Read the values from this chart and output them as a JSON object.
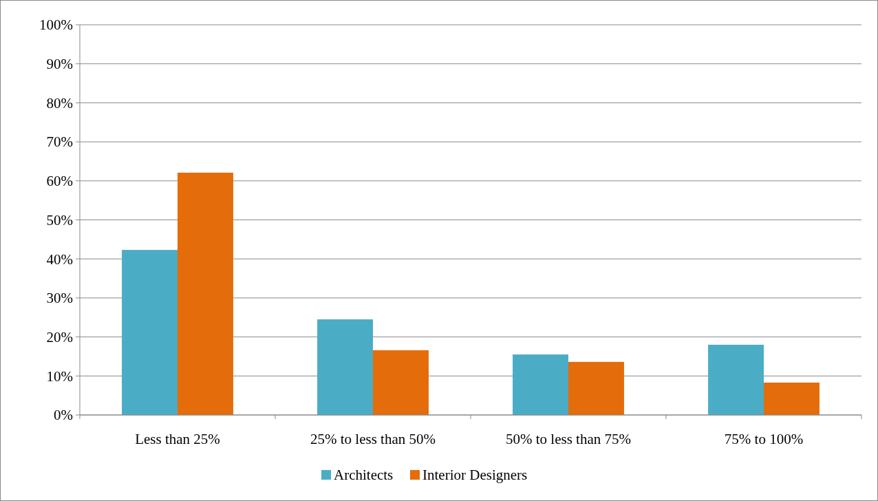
{
  "chart_data": {
    "type": "bar",
    "categories": [
      "Less than 25%",
      "25% to less than 50%",
      "50% to less than 75%",
      "75% to 100%"
    ],
    "series": [
      {
        "name": "Architects",
        "color": "#4bacc6",
        "values": [
          42.3,
          24.5,
          15.5,
          18.0
        ]
      },
      {
        "name": "Interior Designers",
        "color": "#e46c0a",
        "values": [
          62.1,
          16.6,
          13.6,
          8.3
        ]
      }
    ],
    "ylim": [
      0,
      100
    ],
    "yticks": [
      {
        "value": 0,
        "label": "0%"
      },
      {
        "value": 10,
        "label": "10%"
      },
      {
        "value": 20,
        "label": "20%"
      },
      {
        "value": 30,
        "label": "30%"
      },
      {
        "value": 40,
        "label": "40%"
      },
      {
        "value": 50,
        "label": "50%"
      },
      {
        "value": 60,
        "label": "60%"
      },
      {
        "value": 70,
        "label": "70%"
      },
      {
        "value": 80,
        "label": "80%"
      },
      {
        "value": 90,
        "label": "90%"
      },
      {
        "value": 100,
        "label": "100%"
      }
    ],
    "grid": "y",
    "legend": "bottom"
  }
}
